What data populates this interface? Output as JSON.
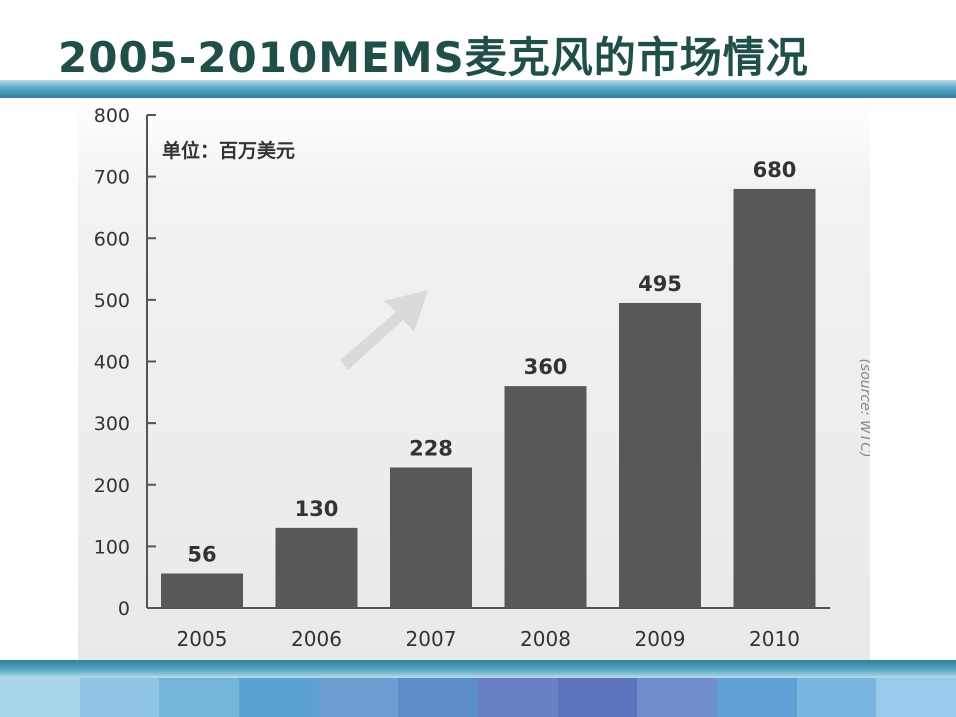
{
  "title": "2005-2010MEMS麦克风的市场情况",
  "colors": {
    "title": "#1f4f48",
    "bar": "#585858",
    "axis": "#555555",
    "band": "#3f93b5"
  },
  "footer_colors": [
    "#a8d5ea",
    "#8ec6e3",
    "#74b5da",
    "#5aa3d1",
    "#6d9fd3",
    "#5c8fca",
    "#6a80c6",
    "#5b74bd",
    "#6f8fcc",
    "#5fa0d6",
    "#7bb6e0",
    "#98cbe9"
  ],
  "chart_data": {
    "type": "bar",
    "unit_note": "单位：百万美元",
    "source_note": "(source: WTC)",
    "categories": [
      "2005",
      "2006",
      "2007",
      "2008",
      "2009",
      "2010"
    ],
    "values": [
      56,
      130,
      228,
      360,
      495,
      680
    ],
    "data_labels": [
      "56",
      "130",
      "228",
      "360",
      "495",
      "680"
    ],
    "yticks": [
      "0",
      "100",
      "200",
      "300",
      "400",
      "500",
      "600",
      "700",
      "800"
    ],
    "ylim": [
      0,
      800
    ],
    "xlabel": "",
    "ylabel": "",
    "grid": false,
    "legend": "none",
    "decoration": "up-right-arrow"
  }
}
